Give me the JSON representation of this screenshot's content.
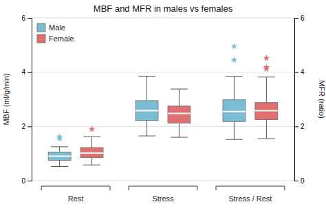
{
  "chart_data": {
    "type": "box",
    "title": "MBF and MFR in males vs females",
    "ylabel": "MBF (ml/g/min)",
    "y2label": "MFR (ratio)",
    "categories": [
      "Rest",
      "Stress",
      "Stress / Rest"
    ],
    "series": [
      {
        "name": "Male",
        "color": "#7BBDD4",
        "values": [
          {
            "median": 0.9,
            "q1": 0.75,
            "q3": 1.05,
            "whislo": 0.52,
            "whishi": 1.25,
            "fliers": [
              1.55,
              1.62
            ]
          },
          {
            "median": 2.58,
            "q1": 2.22,
            "q3": 2.95,
            "whislo": 1.65,
            "whishi": 3.85,
            "fliers": []
          },
          {
            "median": 2.55,
            "q1": 2.18,
            "q3": 2.98,
            "whislo": 1.52,
            "whishi": 3.85,
            "fliers": [
              4.45,
              4.95
            ]
          }
        ]
      },
      {
        "name": "Female",
        "color": "#E07070",
        "values": [
          {
            "median": 1.02,
            "q1": 0.85,
            "q3": 1.22,
            "whislo": 0.58,
            "whishi": 1.62,
            "fliers": [
              1.9
            ]
          },
          {
            "median": 2.48,
            "q1": 2.12,
            "q3": 2.75,
            "whislo": 1.6,
            "whishi": 3.38,
            "fliers": []
          },
          {
            "median": 2.58,
            "q1": 2.25,
            "q3": 2.88,
            "whislo": 1.55,
            "whishi": 3.82,
            "fliers": [
              4.12,
              4.18,
              4.52
            ]
          }
        ]
      }
    ],
    "ylim": [
      0,
      6
    ],
    "yticks": [
      0,
      2,
      4,
      6
    ],
    "y2lim": [
      0,
      6
    ],
    "y2ticks": [
      0,
      2,
      4,
      6
    ],
    "grid": true,
    "legend": "upper left"
  }
}
